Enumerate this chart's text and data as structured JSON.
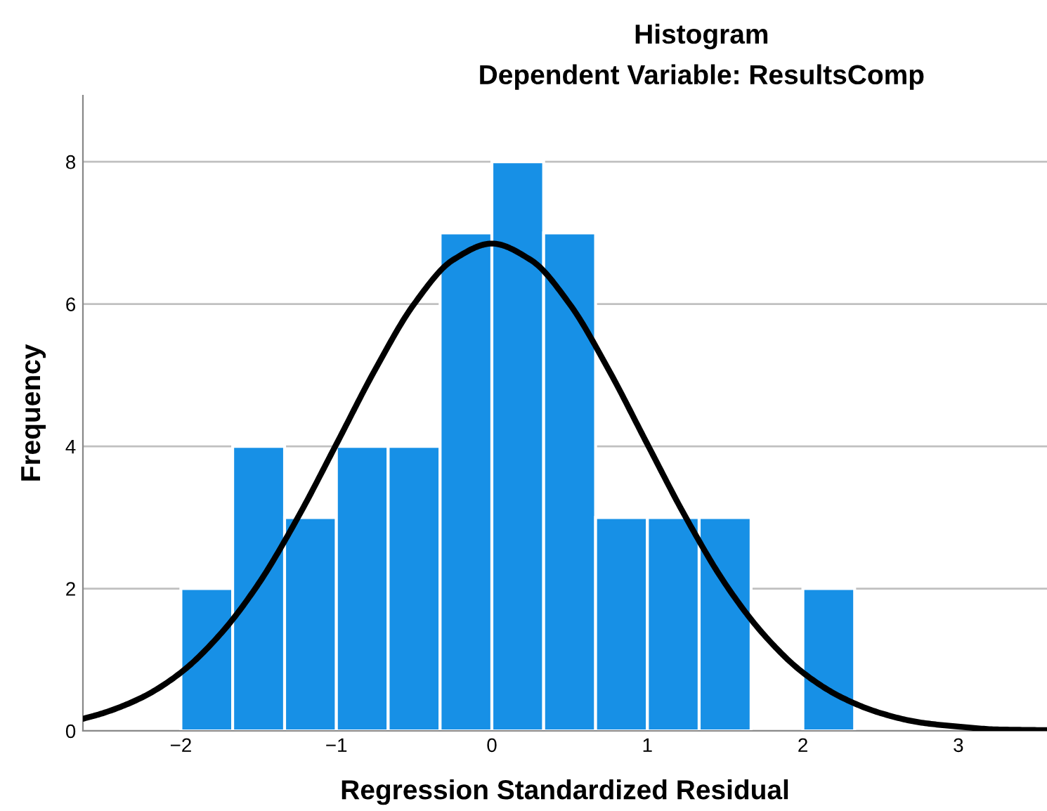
{
  "chart_data": {
    "type": "histogram",
    "title": "Histogram",
    "subtitle": "Dependent Variable: ResultsComp",
    "xlabel": "Regression Standardized Residual",
    "ylabel": "Frequency",
    "bins": [
      -2,
      -1.667,
      -1.333,
      -1,
      -0.667,
      -0.333,
      0,
      0.333,
      0.667,
      1,
      1.333,
      1.667,
      2,
      2.333
    ],
    "values": [
      2,
      4,
      3,
      4,
      4,
      7,
      8,
      7,
      3,
      3,
      3,
      0,
      2
    ],
    "color": "#1790e6",
    "series": [
      {
        "type": "line",
        "color": "#000000",
        "x": [
          -2.63,
          -2.5,
          -2.25,
          -2,
          -1.75,
          -1.5,
          -1.25,
          -1,
          -0.75,
          -0.5,
          -0.25,
          0,
          0.25,
          0.5,
          0.75,
          1,
          1.25,
          1.5,
          1.75,
          2,
          2.25,
          2.5,
          2.75,
          3,
          3.25,
          3.57
        ],
        "values": [
          0.17,
          0.25,
          0.47,
          0.82,
          1.35,
          2.07,
          2.99,
          4.03,
          5.08,
          6.0,
          6.62,
          6.85,
          6.62,
          6.0,
          5.08,
          4.03,
          2.99,
          2.07,
          1.35,
          0.82,
          0.47,
          0.25,
          0.12,
          0.06,
          0.02,
          0.01
        ]
      }
    ],
    "xlim": [
      -2.63,
      3.57
    ],
    "xticks": [
      {
        "value": -2,
        "label": "−2"
      },
      {
        "value": -1,
        "label": "−1"
      },
      0,
      1,
      2,
      3
    ],
    "ylim": [
      0,
      8.93
    ],
    "yticks": [
      0,
      2,
      4,
      6,
      8
    ],
    "grid": "y",
    "legend": false
  }
}
